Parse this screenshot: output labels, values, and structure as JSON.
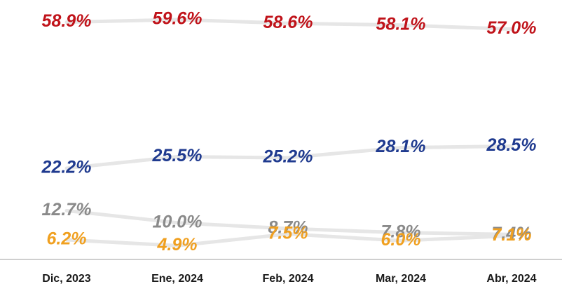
{
  "chart_data": {
    "type": "line",
    "x": [
      "Dic, 2023",
      "Ene, 2024",
      "Feb, 2024",
      "Mar, 2024",
      "Abr, 2024"
    ],
    "series": [
      {
        "values": [
          58.9,
          59.6,
          58.6,
          58.1,
          57.0
        ],
        "labels": [
          "58.9%",
          "59.6%",
          "58.6%",
          "58.1%",
          "57.0%"
        ],
        "label_color": "#c0131a"
      },
      {
        "values": [
          22.2,
          25.5,
          25.2,
          28.1,
          28.5
        ],
        "labels": [
          "22.2%",
          "25.5%",
          "25.2%",
          "28.1%",
          "28.5%"
        ],
        "label_color": "#1f3a8f"
      },
      {
        "values": [
          12.7,
          10.0,
          8.7,
          7.8,
          7.4
        ],
        "labels": [
          "12.7%",
          "10.0%",
          "8.7%",
          "7.8%",
          "7.4%"
        ],
        "label_color": "#8a8a8a"
      },
      {
        "values": [
          6.2,
          4.9,
          7.5,
          6.0,
          7.1
        ],
        "labels": [
          "6.2%",
          "4.9%",
          "7.5%",
          "6.0%",
          "7.1%"
        ],
        "label_color": "#f0a020"
      }
    ],
    "line_color": "#e6e6e6",
    "axis_color": "#cfcfcf",
    "grid": false,
    "legend": "none"
  }
}
